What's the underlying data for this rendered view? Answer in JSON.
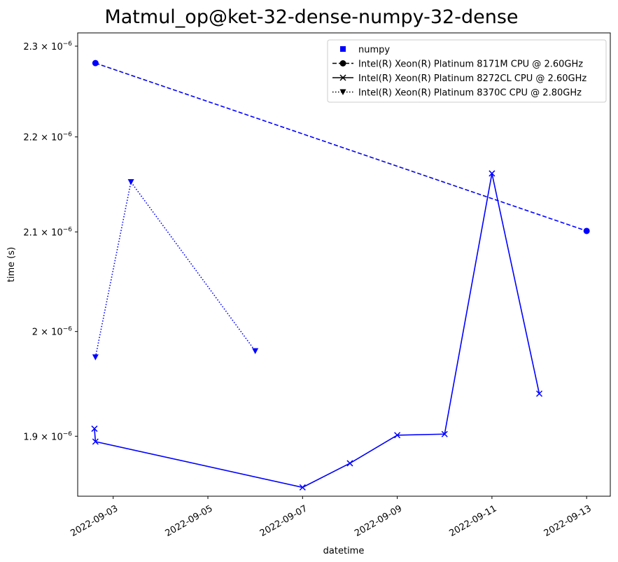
{
  "chart_data": {
    "type": "line",
    "title": "Matmul_op@ket-32-dense-numpy-32-dense",
    "xlabel": "datetime",
    "ylabel": "time (s)",
    "y_scale": "log",
    "xlim": [
      "2022-09-02T06:00",
      "2022-09-13T12:00"
    ],
    "ylim": [
      1.845e-06,
      2.315e-06
    ],
    "x_ticks": [
      "2022-09-03",
      "2022-09-05",
      "2022-09-07",
      "2022-09-09",
      "2022-09-11",
      "2022-09-13"
    ],
    "y_ticks": [
      {
        "value": 1.9e-06,
        "mantissa": "1.9",
        "exp": "−6"
      },
      {
        "value": 2e-06,
        "mantissa": "2",
        "exp": "−6"
      },
      {
        "value": 2.1e-06,
        "mantissa": "2.1",
        "exp": "−6"
      },
      {
        "value": 2.2e-06,
        "mantissa": "2.2",
        "exp": "−6"
      },
      {
        "value": 2.3e-06,
        "mantissa": "2.3",
        "exp": "−6"
      }
    ],
    "grid": false,
    "legend_position": "top-right",
    "color": "#0000ff",
    "legend": [
      {
        "label": "numpy",
        "marker": "square",
        "line": "none"
      },
      {
        "label": "Intel(R) Xeon(R) Platinum 8171M CPU @ 2.60GHz",
        "marker": "circle",
        "line": "dashed"
      },
      {
        "label": "Intel(R) Xeon(R) Platinum 8272CL CPU @ 2.60GHz",
        "marker": "x",
        "line": "solid"
      },
      {
        "label": "Intel(R) Xeon(R) Platinum 8370C CPU @ 2.80GHz",
        "marker": "triangle-down",
        "line": "dotted"
      }
    ],
    "series": [
      {
        "name": "Intel(R) Xeon(R) Platinum 8171M CPU @ 2.60GHz",
        "marker": "circle",
        "line": "dashed",
        "x": [
          "2022-09-02T15:00",
          "2022-09-13T00:00"
        ],
        "y": [
          2.281e-06,
          2.101e-06
        ]
      },
      {
        "name": "Intel(R) Xeon(R) Platinum 8272CL CPU @ 2.60GHz",
        "marker": "x",
        "line": "solid",
        "x": [
          "2022-09-02T14:30",
          "2022-09-02T15:00",
          "2022-09-07T00:00",
          "2022-09-08T00:00",
          "2022-09-09T00:00",
          "2022-09-10T00:00",
          "2022-09-11T00:00",
          "2022-09-12T00:00"
        ],
        "y": [
          1.907e-06,
          1.895e-06,
          1.853e-06,
          1.875e-06,
          1.901e-06,
          1.902e-06,
          2.161e-06,
          1.94e-06
        ]
      },
      {
        "name": "Intel(R) Xeon(R) Platinum 8370C CPU @ 2.80GHz",
        "marker": "triangle-down",
        "line": "dotted",
        "x": [
          "2022-09-02T15:00",
          "2022-09-03T09:00",
          "2022-09-06T00:00"
        ],
        "y": [
          1.975e-06,
          2.152e-06,
          1.981e-06
        ]
      }
    ]
  }
}
